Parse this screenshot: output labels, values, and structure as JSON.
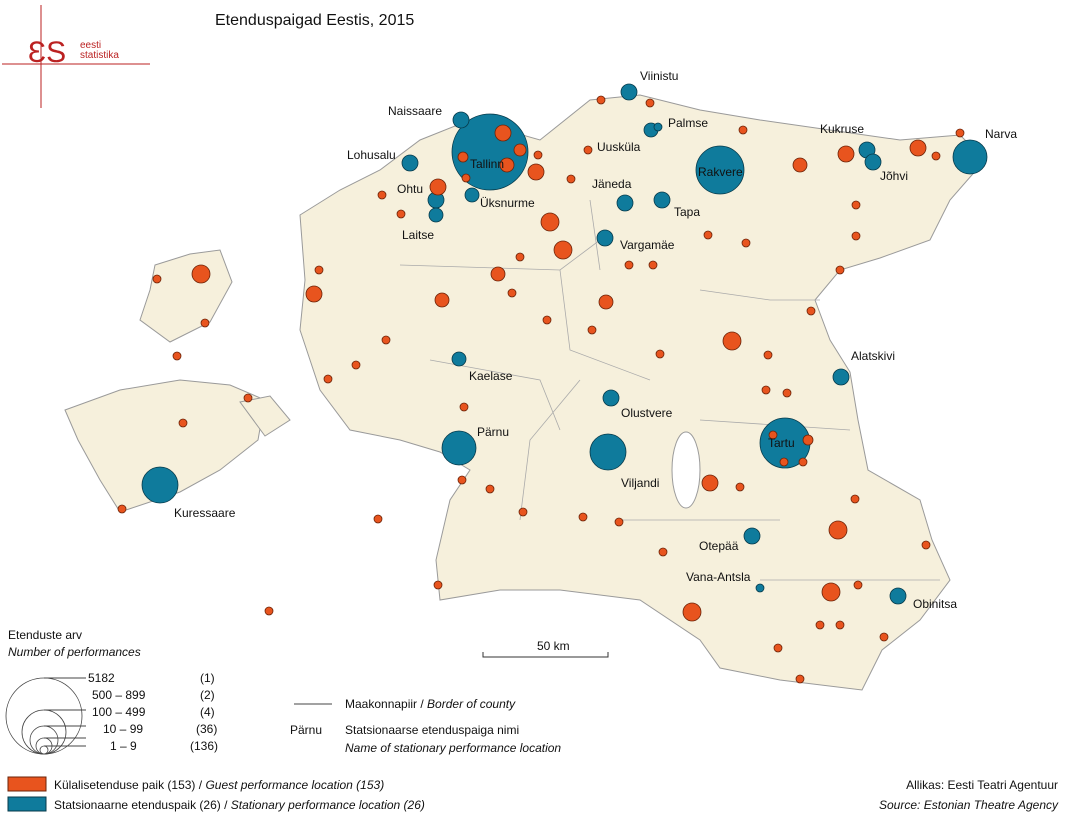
{
  "title": "Etenduspaigad Eestis, 2015",
  "logo": {
    "line1": "eesti",
    "line2": "statistika"
  },
  "places": [
    {
      "label": "Viinistu"
    },
    {
      "label": "Naissaare"
    },
    {
      "label": "Palmse"
    },
    {
      "label": "Kukruse"
    },
    {
      "label": "Narva"
    },
    {
      "label": "Lohusalu"
    },
    {
      "label": "Tallinn"
    },
    {
      "label": "Uusküla"
    },
    {
      "label": "Rakvere"
    },
    {
      "label": "Jõhvi"
    },
    {
      "label": "Ohtu"
    },
    {
      "label": "Jäneda"
    },
    {
      "label": "Üksnurme"
    },
    {
      "label": "Tapa"
    },
    {
      "label": "Laitse"
    },
    {
      "label": "Vargamäe"
    },
    {
      "label": "Alatskivi"
    },
    {
      "label": "Kaelase"
    },
    {
      "label": "Olustvere"
    },
    {
      "label": "Pärnu"
    },
    {
      "label": "Tartu"
    },
    {
      "label": "Viljandi"
    },
    {
      "label": "Kuressaare"
    },
    {
      "label": "Otepää"
    },
    {
      "label": "Vana-Antsla"
    },
    {
      "label": "Obinitsa"
    }
  ],
  "scale": "50 km",
  "legend": {
    "size_title": "Etenduste arv",
    "size_title_en": "Number of performances",
    "size_classes": [
      {
        "range": "5182",
        "count": "(1)"
      },
      {
        "range": "500 – 899",
        "count": "(2)"
      },
      {
        "range": "100 – 499",
        "count": "(4)"
      },
      {
        "range": "10 – 99",
        "count": "(36)"
      },
      {
        "range": "1 – 9",
        "count": "(136)"
      }
    ],
    "border": {
      "et": "Maakonnapiir / ",
      "en": "Border of county"
    },
    "name_sample": "Pärnu",
    "name_desc": {
      "et": "Statsionaarse etenduspaiga nimi",
      "en": "Name of stationary performance location"
    },
    "guest": {
      "et": "Külalisetenduse paik (153) / ",
      "en": "Guest performance location (153)"
    },
    "stationary": {
      "et": "Statsionaarne etenduspaik (26) / ",
      "en": "Stationary performance location (26)"
    }
  },
  "source": {
    "et": "Allikas: Eesti Teatri Agentuur",
    "en": "Source: Estonian Theatre Agency"
  }
}
